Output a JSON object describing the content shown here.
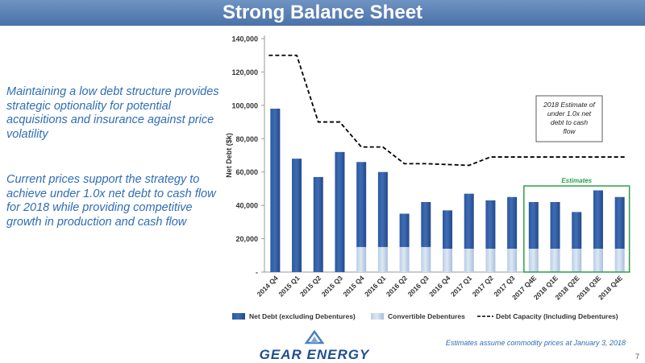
{
  "slide": {
    "title": "Strong Balance Sheet",
    "bullets": [
      "Maintaining a low debt structure provides strategic optionality for potential acquisitions and insurance against price volatility",
      "Current prices support the strategy to achieve under 1.0x net debt to cash flow for 2018 while providing competitive growth in production and cash flow"
    ],
    "footnote": "Estimates assume commodity prices at January 3, 2018",
    "page_number": "7",
    "logo_text": "GEAR ENERGY"
  },
  "colors": {
    "net_debt": "#3f6db2",
    "debentures": "#dde8f4",
    "debt_capacity": "#000000",
    "estimates_box": "#2e9e48",
    "title_bar": "#5a80b5",
    "bullet_text": "#2f6db5"
  },
  "chart_data": {
    "type": "bar",
    "stacked": true,
    "categories": [
      "2014 Q4",
      "2015 Q1",
      "2015 Q2",
      "2015 Q3",
      "2015 Q4",
      "2016 Q1",
      "2016 Q2",
      "2016 Q3",
      "2016 Q4",
      "2017 Q1",
      "2017 Q2",
      "2017 Q3",
      "2017 Q4E",
      "2018 Q1E",
      "2018 Q2E",
      "2018 Q3E",
      "2018 Q4E"
    ],
    "ylabel": "Net Debt ($k)",
    "ylim": [
      0,
      140000
    ],
    "yticks": [
      0,
      20000,
      40000,
      60000,
      80000,
      100000,
      120000,
      140000
    ],
    "ytick_labels": [
      "-",
      "20,000",
      "40,000",
      "60,000",
      "80,000",
      "100,000",
      "120,000",
      "140,000"
    ],
    "series": [
      {
        "name": "Convertible Debentures",
        "kind": "bar",
        "values": [
          0,
          0,
          0,
          0,
          15000,
          15000,
          15000,
          15000,
          14000,
          14000,
          14000,
          14000,
          14000,
          14000,
          14000,
          14000,
          14000
        ]
      },
      {
        "name": "Net Debt (excluding Debentures)",
        "kind": "bar",
        "values": [
          98000,
          68000,
          57000,
          72000,
          51000,
          45000,
          20000,
          27000,
          23000,
          33000,
          29000,
          31000,
          28000,
          28000,
          22000,
          35000,
          31000
        ]
      },
      {
        "name": "Debt Capacity (Including Debentures)",
        "kind": "line",
        "style": "dashed",
        "values": [
          130000,
          130000,
          90000,
          90000,
          75000,
          75000,
          65000,
          65000,
          64500,
          64000,
          69000,
          69000,
          69000,
          69000,
          69000,
          69000,
          69000
        ]
      }
    ],
    "legend": {
      "placement": "bottom",
      "entries": [
        "Net Debt (excluding Debentures)",
        "Convertible Debentures",
        "Debt Capacity (Including Debentures)"
      ]
    },
    "estimates_group": {
      "label": "Estimates",
      "first": "2017 Q4E",
      "last": "2018 Q4E"
    },
    "annotation": "2018 Estimate of under 1.0x net debt to cash flow",
    "grid": false
  }
}
